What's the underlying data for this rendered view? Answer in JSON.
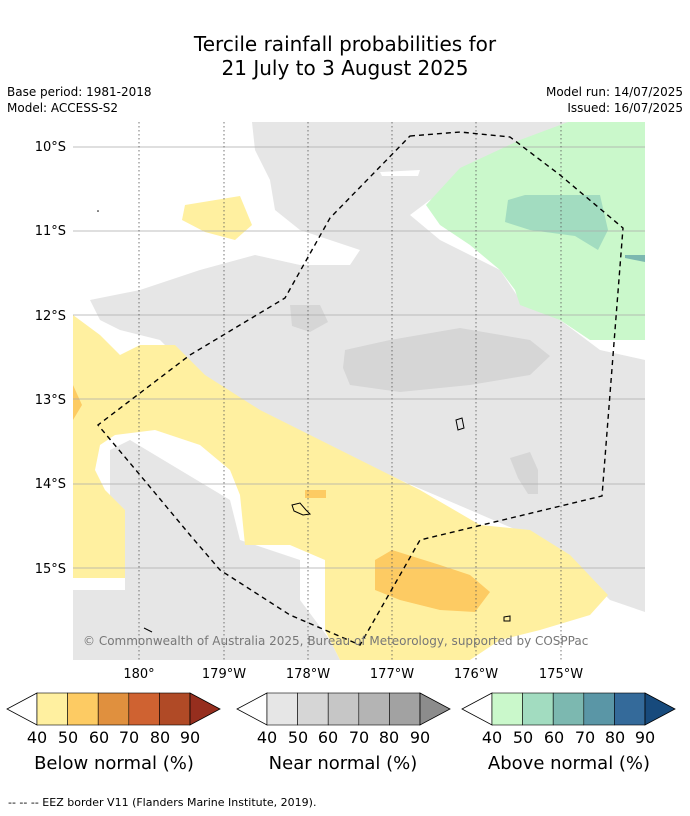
{
  "title_line1": "Tercile rainfall probabilities for",
  "title_line2": "21 July to 3 August 2025",
  "meta": {
    "base_period": "Base period: 1981-2018",
    "model": "Model: ACCESS-S2",
    "model_run": "Model run: 14/07/2025",
    "issued": "Issued: 16/07/2025"
  },
  "map": {
    "lat_labels": [
      "10°S",
      "11°S",
      "12°S",
      "13°S",
      "14°S",
      "15°S"
    ],
    "lon_labels": [
      "180°",
      "179°W",
      "178°W",
      "177°W",
      "176°W",
      "175°W"
    ],
    "copyright": "© Commonwealth of Australia 2025, Bureau of Meteorology, supported by COSPPac"
  },
  "colorbars": [
    {
      "label": "Below normal (%)",
      "ticks": [
        "40",
        "50",
        "60",
        "70",
        "80",
        "90"
      ],
      "colors": [
        "#fff0a0",
        "#fdcb63",
        "#e0903e",
        "#cf6231",
        "#b04a26",
        "#962e1e"
      ]
    },
    {
      "label": "Near normal (%)",
      "ticks": [
        "40",
        "50",
        "60",
        "70",
        "80",
        "90"
      ],
      "colors": [
        "#e6e6e6",
        "#d6d6d6",
        "#c6c6c6",
        "#b4b4b4",
        "#a2a2a2",
        "#8c8c8c"
      ]
    },
    {
      "label": "Above normal (%)",
      "ticks": [
        "40",
        "50",
        "60",
        "70",
        "80",
        "90"
      ],
      "colors": [
        "#caf8cb",
        "#a2dcc0",
        "#7cb8b0",
        "#5a96a6",
        "#346a9a",
        "#174a7c"
      ]
    }
  ],
  "footer": "--  --  -- EEZ border V11 (Flanders Marine Institute, 2019)."
}
